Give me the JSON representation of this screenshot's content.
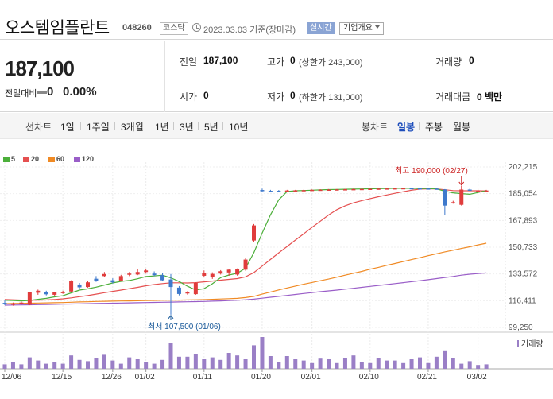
{
  "header": {
    "stock_name": "오스템임플란트",
    "stock_code": "048260",
    "market": "코스닥",
    "base_date": "2023.03.03 기준(장마감)",
    "realtime_label": "실시간",
    "company_info_label": "기업개요"
  },
  "quote": {
    "current_price": "187,100",
    "change_label": "전일대비",
    "change_value": "0",
    "change_rate": "0.00%",
    "prev_close_label": "전일",
    "prev_close": "187,100",
    "high_label": "고가",
    "high": "0",
    "upper_limit": "(상한가 243,000)",
    "volume_label": "거래량",
    "volume": "0",
    "open_label": "시가",
    "open": "0",
    "low_label": "저가",
    "low": "0",
    "lower_limit": "(하한가 131,000)",
    "amount_label": "거래대금",
    "amount": "0 백만"
  },
  "period_bar": {
    "line_chart_label": "선차트",
    "line_periods": [
      "1일",
      "1주일",
      "3개월",
      "1년",
      "3년",
      "5년",
      "10년"
    ],
    "candle_chart_label": "봉차트",
    "candle_periods": [
      "일봉",
      "주봉",
      "월봉"
    ],
    "active_candle_period": "일봉"
  },
  "colors": {
    "up": "#e03c3c",
    "down": "#3e79cc",
    "ma5": "#4caf3a",
    "ma20": "#e55050",
    "ma60": "#f08a24",
    "ma120": "#9a5ec8",
    "volume": "#9a7fc6",
    "active_link": "#1d4dbb"
  },
  "chart_data": {
    "type": "candlestick",
    "legend": [
      {
        "name": "5",
        "color": "#4caf3a"
      },
      {
        "name": "20",
        "color": "#e55050"
      },
      {
        "name": "60",
        "color": "#f08a24"
      },
      {
        "name": "120",
        "color": "#9a5ec8"
      }
    ],
    "y_ticks": [
      "202,215",
      "185,054",
      "167,893",
      "150,733",
      "133,572",
      "116,411",
      "99,250"
    ],
    "ylim": [
      99250,
      202215
    ],
    "x_ticks": [
      "12/06",
      "12/15",
      "12/26",
      "01/02",
      "01/11",
      "01/20",
      "02/01",
      "02/10",
      "02/21",
      "03/02"
    ],
    "x_tick_index": [
      0,
      7,
      13,
      17,
      24,
      31,
      37,
      44,
      51,
      57
    ],
    "high_annotation": "최고 190,000 (02/27)",
    "low_annotation": "최저 107,500 (01/06)",
    "volume_label": "거래량",
    "candles": [
      {
        "o": 115000,
        "h": 116500,
        "l": 113500,
        "c": 114200
      },
      {
        "o": 114000,
        "h": 115200,
        "l": 113200,
        "c": 114600
      },
      {
        "o": 114500,
        "h": 115800,
        "l": 113900,
        "c": 115200
      },
      {
        "o": 113800,
        "h": 122000,
        "l": 113500,
        "c": 121800
      },
      {
        "o": 121500,
        "h": 123500,
        "l": 120200,
        "c": 122800
      },
      {
        "o": 121800,
        "h": 122800,
        "l": 119800,
        "c": 120500
      },
      {
        "o": 120200,
        "h": 122200,
        "l": 119500,
        "c": 121700
      },
      {
        "o": 121500,
        "h": 122800,
        "l": 120800,
        "c": 122000
      },
      {
        "o": 122300,
        "h": 129500,
        "l": 122000,
        "c": 129200
      },
      {
        "o": 126800,
        "h": 127800,
        "l": 124200,
        "c": 125000
      },
      {
        "o": 125200,
        "h": 128800,
        "l": 124800,
        "c": 128200
      },
      {
        "o": 130500,
        "h": 132200,
        "l": 128500,
        "c": 129200
      },
      {
        "o": 132200,
        "h": 134800,
        "l": 131500,
        "c": 133500
      },
      {
        "o": 129500,
        "h": 130800,
        "l": 127500,
        "c": 128200
      },
      {
        "o": 129200,
        "h": 133000,
        "l": 128800,
        "c": 132200
      },
      {
        "o": 133200,
        "h": 134800,
        "l": 132200,
        "c": 133800
      },
      {
        "o": 133200,
        "h": 136800,
        "l": 132800,
        "c": 134800
      },
      {
        "o": 134800,
        "h": 136800,
        "l": 133800,
        "c": 135800
      },
      {
        "o": 133800,
        "h": 135200,
        "l": 132200,
        "c": 132800
      },
      {
        "o": 132800,
        "h": 134200,
        "l": 128800,
        "c": 129500
      },
      {
        "o": 130000,
        "h": 133500,
        "l": 107500,
        "c": 125200
      },
      {
        "o": 124800,
        "h": 125800,
        "l": 119800,
        "c": 120700
      },
      {
        "o": 121200,
        "h": 122500,
        "l": 120300,
        "c": 121800
      },
      {
        "o": 120600,
        "h": 128200,
        "l": 120200,
        "c": 127800
      },
      {
        "o": 132400,
        "h": 135800,
        "l": 131500,
        "c": 134300
      },
      {
        "o": 131800,
        "h": 134600,
        "l": 130400,
        "c": 133600
      },
      {
        "o": 133800,
        "h": 136000,
        "l": 133200,
        "c": 135300
      },
      {
        "o": 134500,
        "h": 136900,
        "l": 132400,
        "c": 136300
      },
      {
        "o": 133200,
        "h": 137100,
        "l": 132500,
        "c": 136500
      },
      {
        "o": 136300,
        "h": 143600,
        "l": 135600,
        "c": 142800
      },
      {
        "o": 155000,
        "h": 165600,
        "l": 154100,
        "c": 164700
      },
      {
        "o": 187400,
        "h": 188300,
        "l": 186300,
        "c": 186900
      },
      {
        "o": 186900,
        "h": 187500,
        "l": 186200,
        "c": 186700
      },
      {
        "o": 186900,
        "h": 187400,
        "l": 186200,
        "c": 186800
      },
      {
        "o": 186600,
        "h": 187500,
        "l": 186200,
        "c": 187100
      },
      {
        "o": 187100,
        "h": 187500,
        "l": 186900,
        "c": 187200
      },
      {
        "o": 187200,
        "h": 187600,
        "l": 186900,
        "c": 187300
      },
      {
        "o": 187300,
        "h": 187800,
        "l": 187000,
        "c": 187500
      },
      {
        "o": 187500,
        "h": 187900,
        "l": 187100,
        "c": 187600
      },
      {
        "o": 187600,
        "h": 188000,
        "l": 187200,
        "c": 187700
      },
      {
        "o": 187700,
        "h": 188100,
        "l": 187300,
        "c": 187800
      },
      {
        "o": 187800,
        "h": 188200,
        "l": 187400,
        "c": 187900
      },
      {
        "o": 187900,
        "h": 188300,
        "l": 187500,
        "c": 188000
      },
      {
        "o": 188000,
        "h": 188300,
        "l": 187600,
        "c": 188100
      },
      {
        "o": 188100,
        "h": 188400,
        "l": 187700,
        "c": 188200
      },
      {
        "o": 188200,
        "h": 188500,
        "l": 187800,
        "c": 188300
      },
      {
        "o": 188300,
        "h": 188600,
        "l": 187900,
        "c": 188400
      },
      {
        "o": 188400,
        "h": 188700,
        "l": 188000,
        "c": 188500
      },
      {
        "o": 188500,
        "h": 188800,
        "l": 188100,
        "c": 188600
      },
      {
        "o": 188600,
        "h": 188900,
        "l": 188200,
        "c": 188500
      },
      {
        "o": 188500,
        "h": 188800,
        "l": 188100,
        "c": 188400
      },
      {
        "o": 188400,
        "h": 188700,
        "l": 188000,
        "c": 188300
      },
      {
        "o": 188300,
        "h": 188500,
        "l": 187900,
        "c": 188000
      },
      {
        "o": 187800,
        "h": 188000,
        "l": 171600,
        "c": 177400
      },
      {
        "o": 179300,
        "h": 180500,
        "l": 178600,
        "c": 179600
      },
      {
        "o": 177900,
        "h": 190000,
        "l": 177400,
        "c": 187700
      },
      {
        "o": 187700,
        "h": 188200,
        "l": 186900,
        "c": 187100
      },
      {
        "o": 187100,
        "h": 187600,
        "l": 186800,
        "c": 187100
      },
      {
        "o": 187100,
        "h": 187500,
        "l": 186800,
        "c": 187100
      }
    ],
    "ma5": [
      116700,
      116500,
      116300,
      116600,
      117300,
      117900,
      118900,
      119600,
      121400,
      123200,
      124000,
      125100,
      126400,
      127800,
      128800,
      129400,
      130500,
      131900,
      132300,
      132800,
      131100,
      128700,
      125700,
      123300,
      124100,
      127300,
      131200,
      132900,
      134000,
      137200,
      147200,
      159700,
      171500,
      181100,
      186400,
      186900,
      187100,
      187300,
      187500,
      187700,
      187800,
      187900,
      188000,
      188100,
      188200,
      188300,
      188400,
      188500,
      188500,
      188500,
      188400,
      188300,
      188200,
      186600,
      185600,
      185100,
      184700,
      185800,
      187100
    ],
    "ma20": [
      117200,
      117000,
      116800,
      116700,
      116800,
      116900,
      117200,
      117600,
      118200,
      119000,
      119700,
      120600,
      121500,
      122400,
      123200,
      124100,
      125000,
      126000,
      126800,
      127400,
      127900,
      127900,
      127800,
      128000,
      128500,
      129000,
      129600,
      130100,
      130600,
      131700,
      134400,
      138600,
      142900,
      147100,
      151200,
      155300,
      159300,
      163400,
      167400,
      171400,
      174800,
      177300,
      179200,
      180600,
      181900,
      183100,
      184200,
      185300,
      186300,
      187300,
      188000,
      188100,
      188100,
      187600,
      187000,
      186900,
      186900,
      186900,
      186800
    ],
    "ma60": [
      114500,
      114600,
      114700,
      114800,
      114900,
      115000,
      115100,
      115200,
      115400,
      115600,
      115700,
      115900,
      116000,
      116100,
      116200,
      116300,
      116400,
      116500,
      116600,
      116700,
      116800,
      116800,
      116900,
      117000,
      117100,
      117300,
      117500,
      117700,
      117900,
      118400,
      119200,
      120600,
      122000,
      123300,
      124600,
      125800,
      127000,
      128100,
      129200,
      130300,
      131500,
      132800,
      134000,
      135200,
      136600,
      137800,
      139100,
      140300,
      141500,
      142800,
      144000,
      145300,
      146500,
      147700,
      148800,
      149900,
      151000,
      152200,
      153300
    ],
    "ma120": [
      113500,
      113600,
      113700,
      113800,
      113900,
      114000,
      114100,
      114200,
      114300,
      114400,
      114500,
      114600,
      114700,
      114800,
      114900,
      115000,
      115100,
      115200,
      115300,
      115400,
      115500,
      115600,
      115700,
      115800,
      115900,
      116100,
      116300,
      116500,
      116700,
      117000,
      117400,
      118000,
      118600,
      119200,
      119800,
      120400,
      121000,
      121600,
      122200,
      122700,
      123200,
      123800,
      124400,
      125000,
      125600,
      126200,
      126800,
      127400,
      128000,
      128600,
      129200,
      129900,
      130600,
      131300,
      132000,
      132800,
      133400,
      133800,
      134200
    ],
    "volume": [
      0.14,
      0.2,
      0.14,
      0.36,
      0.26,
      0.16,
      0.2,
      0.16,
      0.42,
      0.28,
      0.24,
      0.34,
      0.44,
      0.26,
      0.16,
      0.36,
      0.3,
      0.2,
      0.16,
      0.28,
      0.82,
      0.38,
      0.38,
      0.46,
      0.3,
      0.36,
      0.28,
      0.5,
      0.42,
      0.3,
      0.74,
      1.0,
      0.4,
      0.2,
      0.4,
      0.3,
      0.26,
      0.18,
      0.32,
      0.3,
      0.18,
      0.34,
      0.42,
      0.22,
      0.18,
      0.34,
      0.26,
      0.26,
      0.18,
      0.3,
      0.36,
      0.18,
      0.38,
      0.58,
      0.34,
      0.16,
      0.24,
      0.12,
      0.14
    ]
  }
}
